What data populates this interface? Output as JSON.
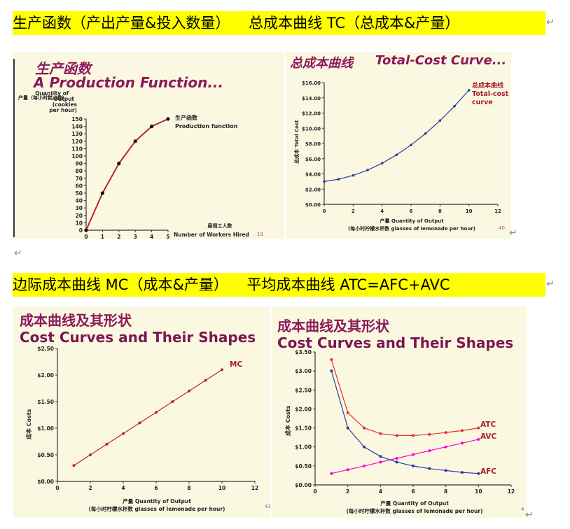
{
  "headings": {
    "row1": "生产函数（产出产量&投入数量）    总成本曲线 TC（总成本&产量）",
    "row2": "边际成本曲线 MC（成本&产量）    平均成本曲线 ATC=AFC+AVC"
  },
  "return_mark": "↵",
  "panels": {
    "production": {
      "title_cn": "生产函数",
      "title_en": "A Production Function...",
      "page_no": "19"
    },
    "tc": {
      "title_cn": "总成本曲线",
      "title_en": "Total-Cost Curve...",
      "page_no": "40"
    },
    "mc": {
      "title_cn": "成本曲线及其形状",
      "title_en": "Cost Curves and Their Shapes",
      "page_no": "43"
    },
    "atc": {
      "title_cn": "成本曲线及其形状",
      "title_en": "Cost Curves and Their Shapes",
      "page_no": "4"
    }
  },
  "chart_data": [
    {
      "type": "line",
      "ylabel": "产量（每小时糕点数） Quantity of Output (cookies per hour)",
      "ylabel_cn": "产量（每小时糕点数）",
      "ylabel_en": [
        "Quantity of",
        "Output",
        "(cookies",
        "per hour)"
      ],
      "xlabel": "雇佣工人数 Number of Workers Hired",
      "xlabel_cn": "雇佣工人数",
      "xlabel_en": "Number of Workers Hired",
      "x": [
        0,
        1,
        2,
        3,
        4,
        5
      ],
      "xlim": [
        0,
        5
      ],
      "ylim": [
        0,
        150
      ],
      "yticks": [
        0,
        10,
        20,
        30,
        40,
        50,
        60,
        70,
        80,
        90,
        100,
        110,
        120,
        130,
        140,
        150
      ],
      "xticks": [
        0,
        1,
        2,
        3,
        4,
        5
      ],
      "series": [
        {
          "name": "生产函数 Production function",
          "name_cn": "生产函数",
          "name_en": "Production function",
          "values": [
            0,
            50,
            90,
            120,
            140,
            150
          ],
          "color": "#c0202a"
        }
      ]
    },
    {
      "type": "line",
      "ylabel": "总成本 Total Cost",
      "ylabel_cn": "总成本",
      "ylabel_en": "Total Cost",
      "xlabel": "产量 Quantity of Output（每小时柠檬水杯数 glasses of lemonade per hour）",
      "xlabel_line1": "产量  Quantity of Output",
      "xlabel_line2": "(每小时柠檬水杯数  glasses of lemonade per hour)",
      "xlim": [
        0,
        12
      ],
      "ylim": [
        0,
        16
      ],
      "xticks": [
        0,
        2,
        4,
        6,
        8,
        10,
        12
      ],
      "yticks": [
        "$0.00",
        "$2.00",
        "$4.00",
        "$6.00",
        "$8.00",
        "$10.00",
        "$12.00",
        "$14.00",
        "$16.00"
      ],
      "x": [
        0,
        1,
        2,
        3,
        4,
        5,
        6,
        7,
        8,
        9,
        10
      ],
      "series": [
        {
          "name": "总成本曲线 Total-cost curve",
          "name_cn": "总成本曲线",
          "name_en_1": "Total-cost",
          "name_en_2": "curve",
          "values": [
            3.0,
            3.3,
            3.8,
            4.5,
            5.4,
            6.5,
            7.8,
            9.3,
            11.0,
            12.9,
            15.0
          ],
          "color": "#2a3d9c"
        }
      ]
    },
    {
      "type": "line",
      "ylabel": "成本 Costs",
      "ylabel_cn": "成本",
      "ylabel_en": "Costs",
      "xlabel_line1": "产量  Quantity of Output",
      "xlabel_line2": "(每小时柠檬水杯数  glasses of lemonade per hour)",
      "xlim": [
        0,
        12
      ],
      "ylim": [
        0,
        2.5
      ],
      "xticks": [
        0,
        2,
        4,
        6,
        8,
        10,
        12
      ],
      "yticks": [
        "$0.00",
        "$0.50",
        "$1.00",
        "$1.50",
        "$2.00",
        "$2.50"
      ],
      "x": [
        1,
        2,
        3,
        4,
        5,
        6,
        7,
        8,
        9,
        10
      ],
      "series": [
        {
          "name": "MC",
          "values": [
            0.3,
            0.5,
            0.7,
            0.9,
            1.1,
            1.3,
            1.5,
            1.7,
            1.9,
            2.1
          ],
          "color": "#c0202a"
        }
      ]
    },
    {
      "type": "line",
      "ylabel": "成本 Costs",
      "ylabel_cn": "成本",
      "ylabel_en": "Costs",
      "xlabel_line1": "产量  Quantity of Output",
      "xlabel_line2": "(每小时柠檬水杯数  glasses of lemonade per hour)",
      "xlim": [
        0,
        12
      ],
      "ylim": [
        0,
        3.5
      ],
      "xticks": [
        0,
        2,
        4,
        6,
        8,
        10,
        12
      ],
      "yticks": [
        "$0.00",
        "$0.50",
        "$1.00",
        "$1.50",
        "$2.00",
        "$2.50",
        "$3.00",
        "$3.50"
      ],
      "x": [
        1,
        2,
        3,
        4,
        5,
        6,
        7,
        8,
        9,
        10
      ],
      "series": [
        {
          "name": "ATC",
          "values": [
            3.3,
            1.9,
            1.5,
            1.35,
            1.3,
            1.3,
            1.33,
            1.38,
            1.43,
            1.5
          ],
          "color": "#e53030"
        },
        {
          "name": "AVC",
          "values": [
            0.3,
            0.4,
            0.5,
            0.6,
            0.7,
            0.8,
            0.9,
            1.0,
            1.1,
            1.2
          ],
          "color": "#ff00cc"
        },
        {
          "name": "AFC",
          "values": [
            3.0,
            1.5,
            1.0,
            0.75,
            0.6,
            0.5,
            0.43,
            0.38,
            0.33,
            0.3
          ],
          "color": "#2a3d9c"
        }
      ]
    }
  ]
}
